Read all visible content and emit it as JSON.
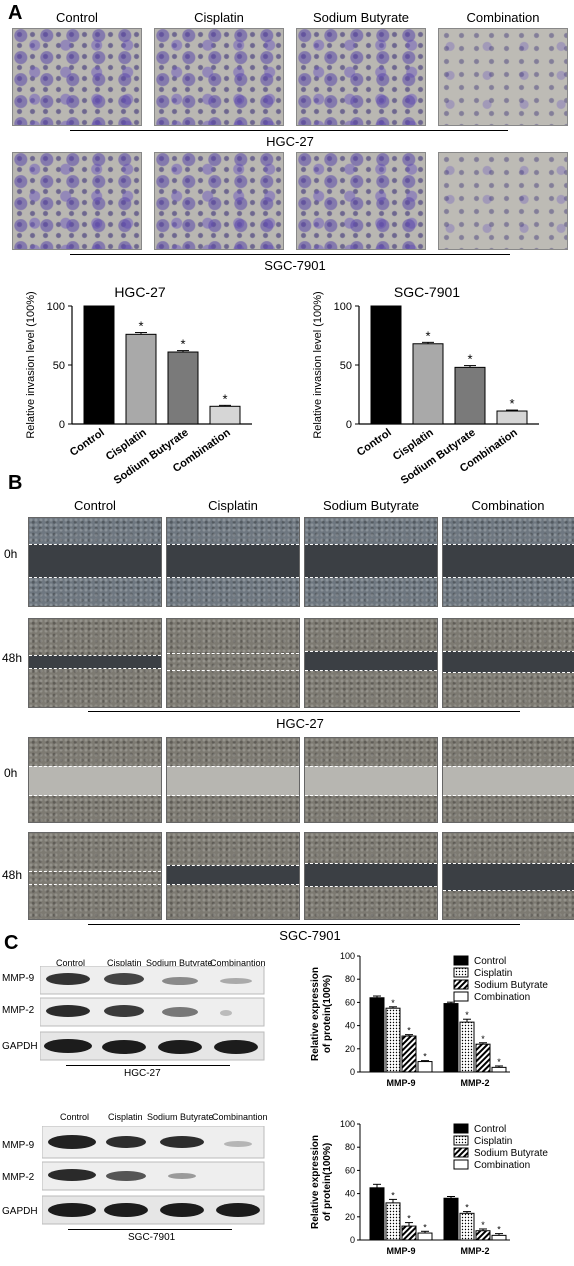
{
  "panel_labels": {
    "a": "A",
    "b": "B",
    "c": "C"
  },
  "treatments": [
    "Control",
    "Cisplatin",
    "Sodium Butyrate",
    "Combination"
  ],
  "cell_lines": {
    "hgc": "HGC-27",
    "sgc": "SGC-7901"
  },
  "timepoints": {
    "t0": "0h",
    "t48": "48h"
  },
  "blot": {
    "headers": [
      "Control",
      "Cisplatin",
      "Sodium Butyrate",
      "Combinantion"
    ],
    "rows": [
      "MMP-9",
      "MMP-2",
      "GAPDH"
    ]
  },
  "chart_data": [
    {
      "type": "bar",
      "title": "HGC-27",
      "ylabel": "Relative invasion level (100%)",
      "categories": [
        "Control",
        "Cisplatin",
        "Sodium Butyrate",
        "Combination"
      ],
      "values": [
        100,
        76,
        61,
        15
      ],
      "errors": [
        0,
        1.5,
        1.2,
        0.8
      ],
      "significance": [
        "",
        "*",
        "*",
        "*"
      ],
      "ylim": [
        0,
        100
      ],
      "yticks": [
        0,
        50,
        100
      ],
      "colors": [
        "#000000",
        "#a9a9a9",
        "#7a7a7a",
        "#d6d6d6"
      ]
    },
    {
      "type": "bar",
      "title": "SGC-7901",
      "ylabel": "Relative invasion level (100%)",
      "categories": [
        "Control",
        "Cisplatin",
        "Sodium Butyrate",
        "Combination"
      ],
      "values": [
        100,
        68,
        48,
        11
      ],
      "errors": [
        0,
        1.2,
        1.5,
        0.8
      ],
      "significance": [
        "",
        "*",
        "*",
        "*"
      ],
      "ylim": [
        0,
        100
      ],
      "yticks": [
        0,
        50,
        100
      ],
      "colors": [
        "#000000",
        "#a9a9a9",
        "#7a7a7a",
        "#d6d6d6"
      ]
    },
    {
      "type": "bar",
      "ylabel": "Relative expression of protein(100%)",
      "categories": [
        "MMP-9",
        "MMP-2"
      ],
      "series": [
        {
          "name": "Control",
          "values": [
            64,
            59
          ],
          "errors": [
            1.5,
            1.2
          ]
        },
        {
          "name": "Cisplatin",
          "values": [
            55,
            43
          ],
          "errors": [
            1.2,
            2.5
          ]
        },
        {
          "name": "Sodium Butyrate",
          "values": [
            31,
            24
          ],
          "errors": [
            1.2,
            1.2
          ]
        },
        {
          "name": "Combination",
          "values": [
            9,
            4
          ],
          "errors": [
            0.8,
            1.2
          ]
        }
      ],
      "significance": [
        "",
        "*",
        "*",
        "*"
      ],
      "ylim": [
        0,
        100
      ],
      "yticks": [
        0,
        20,
        40,
        60,
        80,
        100
      ],
      "legend": "top-right"
    },
    {
      "type": "bar",
      "ylabel": "Relative expression of protein(100%)",
      "categories": [
        "MMP-9",
        "MMP-2"
      ],
      "series": [
        {
          "name": "Control",
          "values": [
            45,
            36
          ],
          "errors": [
            3,
            1.5
          ]
        },
        {
          "name": "Cisplatin",
          "values": [
            32,
            23
          ],
          "errors": [
            3,
            1.5
          ]
        },
        {
          "name": "Sodium Butyrate",
          "values": [
            12,
            8
          ],
          "errors": [
            3,
            1.5
          ]
        },
        {
          "name": "Combination",
          "values": [
            6,
            4
          ],
          "errors": [
            1.5,
            1.5
          ]
        }
      ],
      "significance": [
        "",
        "*",
        "*",
        "*"
      ],
      "ylim": [
        0,
        100
      ],
      "yticks": [
        0,
        20,
        40,
        60,
        80,
        100
      ],
      "legend": "top-right"
    }
  ]
}
